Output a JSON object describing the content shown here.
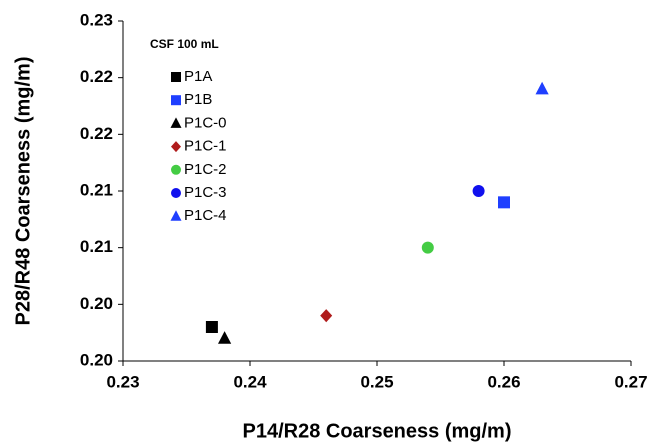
{
  "chart_data": {
    "type": "scatter",
    "x_label": "P14/R28 Coarseness (mg/m)",
    "y_label": "P28/R48 Coarseness (mg/m)",
    "legend_title": "CSF 100 mL",
    "xlim": [
      0.23,
      0.27
    ],
    "xticks": [
      0.23,
      0.24,
      0.25,
      0.26,
      0.27
    ],
    "ylim": [
      0.2,
      0.23
    ],
    "yticks": [
      {
        "value": 0.2,
        "label": "0.20"
      },
      {
        "value": 0.205,
        "label": "0.20"
      },
      0.21,
      {
        "value": 0.215,
        "label": "0.21"
      },
      0.22,
      {
        "value": 0.225,
        "label": "0.22"
      },
      0.23
    ],
    "legend": "upper-left",
    "series": [
      {
        "name": "P1A",
        "color": "#000000",
        "marker": "square",
        "x": [
          0.237
        ],
        "values": [
          0.203
        ]
      },
      {
        "name": "P1B",
        "color": "#1f3fff",
        "marker": "square",
        "x": [
          0.26
        ],
        "values": [
          0.214
        ]
      },
      {
        "name": "P1C-0",
        "color": "#000000",
        "marker": "triangle",
        "x": [
          0.238
        ],
        "values": [
          0.202
        ]
      },
      {
        "name": "P1C-1",
        "color": "#b01c1c",
        "marker": "diamond",
        "x": [
          0.246
        ],
        "values": [
          0.204
        ]
      },
      {
        "name": "P1C-2",
        "color": "#44cc44",
        "marker": "circle",
        "x": [
          0.254
        ],
        "values": [
          0.21
        ]
      },
      {
        "name": "P1C-3",
        "color": "#1010ee",
        "marker": "circle",
        "x": [
          0.258
        ],
        "values": [
          0.215
        ]
      },
      {
        "name": "P1C-4",
        "color": "#1f3fff",
        "marker": "triangle",
        "x": [
          0.263
        ],
        "values": [
          0.224
        ]
      }
    ]
  }
}
